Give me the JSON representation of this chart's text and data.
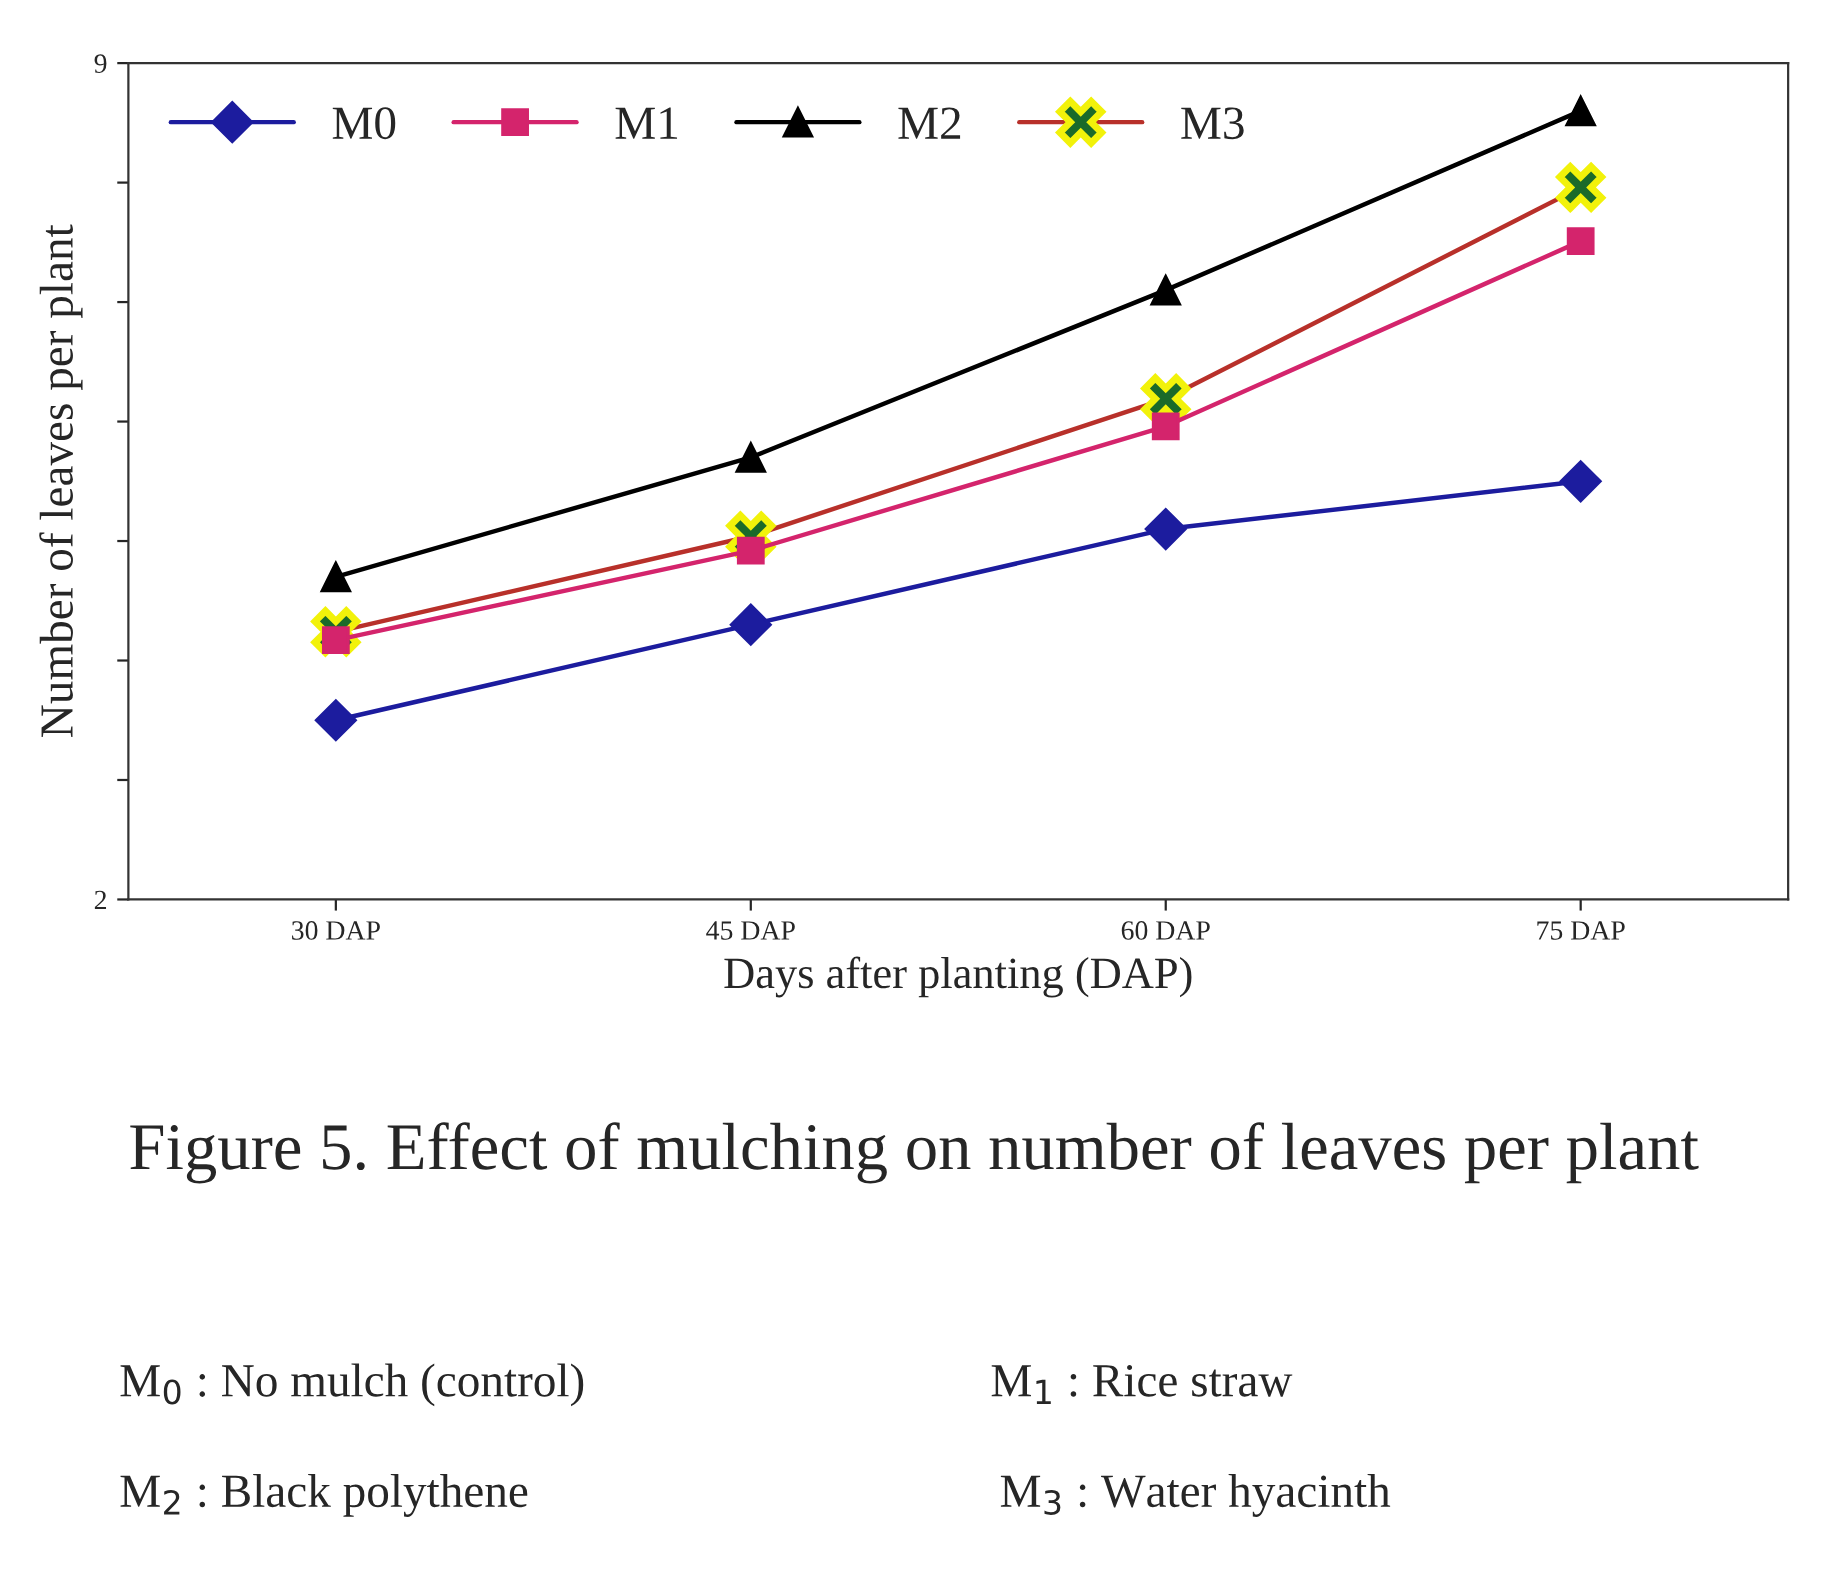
{
  "chart_data": {
    "type": "line",
    "xlabel": "Days after planting (DAP)",
    "ylabel": "Number of leaves per plant",
    "categories": [
      "30 DAP",
      "45 DAP",
      "60 DAP",
      "75 DAP"
    ],
    "ylim": [
      2,
      9
    ],
    "yticks": [
      2,
      {
        "value": 3,
        "label": null
      },
      {
        "value": 4,
        "label": null
      },
      {
        "value": 5,
        "label": null
      },
      {
        "value": 6,
        "label": null
      },
      {
        "value": 7,
        "label": null
      },
      {
        "value": 8,
        "label": null
      },
      9
    ],
    "series": [
      {
        "name": "M0",
        "color": "#1c1c9e",
        "marker": "diamond",
        "values": [
          3.5,
          4.3,
          5.1,
          5.5
        ]
      },
      {
        "name": "M1",
        "color": "#d4246c",
        "marker": "square",
        "values": [
          4.17,
          4.92,
          5.96,
          7.51
        ]
      },
      {
        "name": "M2",
        "color": "#000000",
        "marker": "triangle",
        "values": [
          4.7,
          5.7,
          7.1,
          8.6
        ]
      },
      {
        "name": "M3",
        "color": "#b8302a",
        "marker": "cross",
        "values": [
          4.24,
          5.04,
          6.19,
          7.96
        ]
      }
    ],
    "legend": "top left",
    "grid": false,
    "annotations": [
      "Figure 5. Effect of mulching on number of leaves per plant",
      "M$_{0}$ : No mulch (control)",
      "M$_{1}$ : Rice straw",
      "M$_{2}$ : Black polythene",
      "M$_{3}$ : Water hyacinth"
    ]
  }
}
